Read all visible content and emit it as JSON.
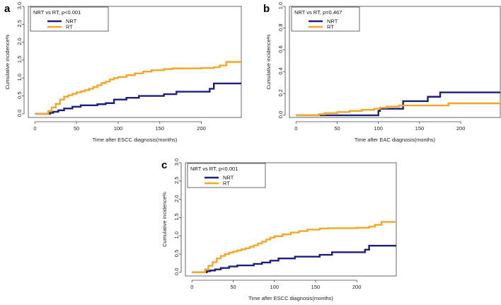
{
  "colors": {
    "NRT": "#1a1f80",
    "RT": "#f5a623",
    "axis": "#444444"
  },
  "chart_data": [
    {
      "panel": "a",
      "type": "line",
      "legend_title": "NRT vs RT, p<0.001",
      "legend_position": "top-left",
      "xlabel": "Time after ESCC diagnosis(months)",
      "ylabel": "Cumulative incidence%",
      "xlim": [
        -8,
        248
      ],
      "ylim": [
        -0.1,
        3.0
      ],
      "xticks": [
        0,
        50,
        100,
        150,
        200
      ],
      "yticks": [
        0.0,
        0.5,
        1.0,
        1.5,
        2.0,
        2.5,
        3.0
      ],
      "xtick_labels": [
        "0",
        "50",
        "100",
        "150",
        "200"
      ],
      "ytick_labels": [
        "0.0",
        "0.5",
        "1.0",
        "1.5",
        "2.0",
        "2.5",
        "3.0"
      ],
      "series": [
        {
          "name": "NRT",
          "color_key": "NRT",
          "x": [
            0,
            15,
            18,
            22,
            28,
            35,
            45,
            55,
            75,
            85,
            95,
            110,
            125,
            155,
            170,
            210,
            215,
            248
          ],
          "y": [
            0,
            0,
            0.03,
            0.06,
            0.1,
            0.15,
            0.2,
            0.24,
            0.27,
            0.3,
            0.4,
            0.45,
            0.5,
            0.55,
            0.62,
            0.7,
            0.85,
            0.85
          ]
        },
        {
          "name": "RT",
          "color_key": "RT",
          "x": [
            0,
            13,
            16,
            20,
            25,
            30,
            35,
            40,
            45,
            50,
            55,
            60,
            65,
            70,
            75,
            80,
            85,
            90,
            95,
            100,
            110,
            120,
            130,
            140,
            155,
            165,
            200,
            215,
            222,
            230,
            248
          ],
          "y": [
            0,
            0,
            0.08,
            0.18,
            0.28,
            0.4,
            0.48,
            0.52,
            0.56,
            0.6,
            0.63,
            0.66,
            0.7,
            0.75,
            0.8,
            0.86,
            0.9,
            0.96,
            1.0,
            1.03,
            1.08,
            1.13,
            1.18,
            1.22,
            1.25,
            1.27,
            1.28,
            1.3,
            1.35,
            1.45,
            1.45
          ]
        }
      ]
    },
    {
      "panel": "b",
      "type": "line",
      "legend_title": "NRT vs RT, p=0.467",
      "legend_position": "top-left",
      "xlabel": "Time after EAC diagnosis(months)",
      "ylabel": "Cumulative incidence%",
      "xlim": [
        -8,
        248
      ],
      "ylim": [
        -0.02,
        1.0
      ],
      "xticks": [
        0,
        50,
        100,
        150,
        200
      ],
      "yticks": [
        0.0,
        0.2,
        0.4,
        0.6,
        0.8,
        1.0
      ],
      "xtick_labels": [
        "0",
        "50",
        "100",
        "150",
        "200"
      ],
      "ytick_labels": [
        "0.0",
        "0.2",
        "0.4",
        "0.6",
        "0.8",
        "1.0"
      ],
      "series": [
        {
          "name": "NRT",
          "color_key": "NRT",
          "x": [
            0,
            30,
            95,
            100,
            102,
            125,
            130,
            155,
            160,
            170,
            175,
            248
          ],
          "y": [
            0,
            0,
            0.0,
            0.04,
            0.06,
            0.06,
            0.13,
            0.13,
            0.17,
            0.17,
            0.21,
            0.21
          ]
        },
        {
          "name": "RT",
          "color_key": "RT",
          "x": [
            0,
            28,
            35,
            50,
            65,
            80,
            95,
            102,
            110,
            125,
            185,
            248
          ],
          "y": [
            0,
            0.01,
            0.02,
            0.03,
            0.04,
            0.05,
            0.06,
            0.07,
            0.08,
            0.09,
            0.11,
            0.11
          ]
        }
      ]
    },
    {
      "panel": "c",
      "type": "line",
      "legend_title": "NRT vs RT, p<0.001",
      "legend_position": "top-left",
      "xlabel": "Time after ESCC diagnosis(months)",
      "ylabel": "Cumulative incidence%",
      "xlim": [
        -8,
        248
      ],
      "ylim": [
        -0.1,
        3.0
      ],
      "xticks": [
        0,
        50,
        100,
        150,
        200
      ],
      "yticks": [
        0.0,
        0.5,
        1.0,
        1.5,
        2.0,
        2.5,
        3.0
      ],
      "xtick_labels": [
        "0",
        "50",
        "100",
        "150",
        "200"
      ],
      "ytick_labels": [
        "0.0",
        "0.5",
        "1.0",
        "1.5",
        "2.0",
        "2.5",
        "3.0"
      ],
      "series": [
        {
          "name": "NRT",
          "color_key": "NRT",
          "x": [
            0,
            15,
            18,
            22,
            28,
            35,
            45,
            55,
            75,
            85,
            95,
            105,
            125,
            155,
            170,
            210,
            215,
            248
          ],
          "y": [
            0,
            0,
            0.03,
            0.05,
            0.08,
            0.12,
            0.16,
            0.19,
            0.23,
            0.27,
            0.32,
            0.38,
            0.43,
            0.48,
            0.55,
            0.62,
            0.73,
            0.73
          ]
        },
        {
          "name": "RT",
          "color_key": "RT",
          "x": [
            0,
            13,
            16,
            20,
            25,
            30,
            35,
            40,
            45,
            50,
            55,
            60,
            65,
            70,
            75,
            80,
            85,
            90,
            95,
            100,
            110,
            120,
            130,
            140,
            155,
            165,
            200,
            215,
            222,
            230,
            248
          ],
          "y": [
            0,
            0,
            0.08,
            0.18,
            0.28,
            0.38,
            0.45,
            0.5,
            0.54,
            0.57,
            0.6,
            0.63,
            0.66,
            0.7,
            0.74,
            0.79,
            0.84,
            0.9,
            0.95,
            0.99,
            1.04,
            1.09,
            1.13,
            1.17,
            1.2,
            1.21,
            1.22,
            1.25,
            1.3,
            1.38,
            1.38
          ]
        }
      ]
    }
  ]
}
